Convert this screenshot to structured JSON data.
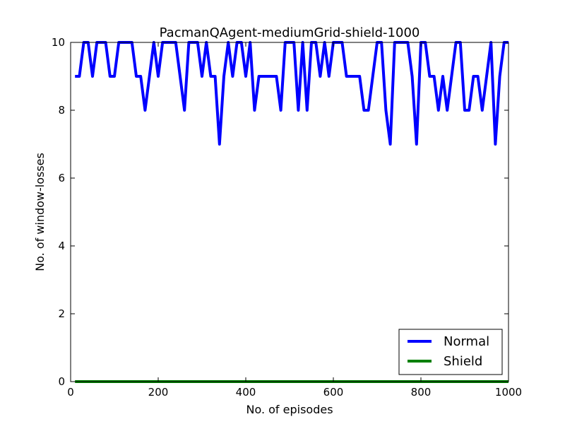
{
  "chart_data": {
    "type": "line",
    "title": "PacmanQAgent-mediumGrid-shield-1000",
    "xlabel": "No. of episodes",
    "ylabel": "No. of window-losses",
    "xlim": [
      0,
      1000
    ],
    "ylim": [
      0,
      10
    ],
    "xticks": [
      0,
      200,
      400,
      600,
      800,
      1000
    ],
    "yticks": [
      0,
      2,
      4,
      6,
      8,
      10
    ],
    "xtick_labels": [
      "0",
      "200",
      "400",
      "600",
      "800",
      "1000"
    ],
    "ytick_labels": [
      "0",
      "2",
      "4",
      "6",
      "8",
      "10"
    ],
    "grid": false,
    "legend_position": "lower-right",
    "x": [
      10,
      20,
      30,
      40,
      50,
      60,
      70,
      80,
      90,
      100,
      110,
      120,
      130,
      140,
      150,
      160,
      170,
      180,
      190,
      200,
      210,
      220,
      230,
      240,
      250,
      260,
      270,
      280,
      290,
      300,
      310,
      320,
      330,
      340,
      350,
      360,
      370,
      380,
      390,
      400,
      410,
      420,
      430,
      440,
      450,
      460,
      470,
      480,
      490,
      500,
      510,
      520,
      530,
      540,
      550,
      560,
      570,
      580,
      590,
      600,
      610,
      620,
      630,
      640,
      650,
      660,
      670,
      680,
      690,
      700,
      710,
      720,
      730,
      740,
      750,
      760,
      770,
      780,
      790,
      800,
      810,
      820,
      830,
      840,
      850,
      860,
      870,
      880,
      890,
      900,
      910,
      920,
      930,
      940,
      950,
      960,
      970,
      980,
      990,
      1000
    ],
    "series": [
      {
        "name": "Normal",
        "color": "#0000ff",
        "values": [
          9,
          9,
          10,
          10,
          9,
          10,
          10,
          10,
          9,
          9,
          10,
          10,
          10,
          10,
          9,
          9,
          8,
          9,
          10,
          9,
          10,
          10,
          10,
          10,
          9,
          8,
          10,
          10,
          10,
          9,
          10,
          9,
          9,
          7,
          9,
          10,
          9,
          10,
          10,
          9,
          10,
          8,
          9,
          9,
          9,
          9,
          9,
          8,
          10,
          10,
          10,
          8,
          10,
          8,
          10,
          10,
          9,
          10,
          9,
          10,
          10,
          10,
          9,
          9,
          9,
          9,
          8,
          8,
          9,
          10,
          10,
          8,
          7,
          10,
          10,
          10,
          10,
          9,
          7,
          10,
          10,
          9,
          9,
          8,
          9,
          8,
          9,
          10,
          10,
          8,
          8,
          9,
          9,
          8,
          9,
          10,
          7,
          9,
          10,
          10
        ]
      },
      {
        "name": "Shield",
        "color": "#008000",
        "values": [
          0,
          0,
          0,
          0,
          0,
          0,
          0,
          0,
          0,
          0,
          0,
          0,
          0,
          0,
          0,
          0,
          0,
          0,
          0,
          0,
          0,
          0,
          0,
          0,
          0,
          0,
          0,
          0,
          0,
          0,
          0,
          0,
          0,
          0,
          0,
          0,
          0,
          0,
          0,
          0,
          0,
          0,
          0,
          0,
          0,
          0,
          0,
          0,
          0,
          0,
          0,
          0,
          0,
          0,
          0,
          0,
          0,
          0,
          0,
          0,
          0,
          0,
          0,
          0,
          0,
          0,
          0,
          0,
          0,
          0,
          0,
          0,
          0,
          0,
          0,
          0,
          0,
          0,
          0,
          0,
          0,
          0,
          0,
          0,
          0,
          0,
          0,
          0,
          0,
          0,
          0,
          0,
          0,
          0,
          0,
          0,
          0,
          0,
          0,
          0
        ]
      }
    ]
  }
}
